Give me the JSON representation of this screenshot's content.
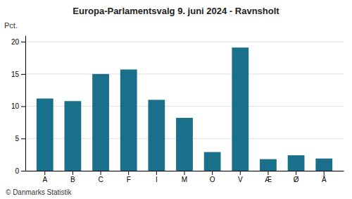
{
  "chart_data": {
    "type": "bar",
    "title": "Europa-Parlamentsvalg 9. juni 2024 - Ravnsholt",
    "categories": [
      "A",
      "B",
      "C",
      "F",
      "I",
      "M",
      "O",
      "V",
      "Æ",
      "Ø",
      "Å"
    ],
    "values": [
      11.2,
      10.8,
      15.0,
      15.7,
      11.0,
      8.2,
      2.9,
      19.1,
      1.8,
      2.4,
      1.9
    ],
    "color": "#1a6f8a",
    "ylabel": "Pct.",
    "ylim": [
      0,
      21
    ],
    "yticks": [
      0,
      5,
      10,
      15,
      20
    ],
    "grid": true,
    "annotations": [
      "© Danmarks Statistik"
    ]
  }
}
